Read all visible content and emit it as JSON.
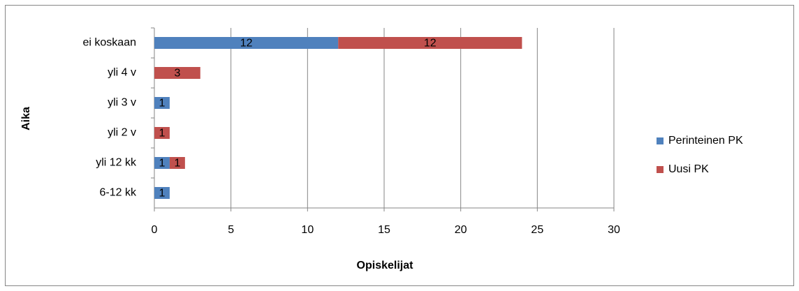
{
  "chart_data": {
    "type": "bar",
    "orientation": "horizontal",
    "stacked": true,
    "categories": [
      "ei koskaan",
      "yli 4 v",
      "yli 3 v",
      "yli 2 v",
      "yli 12 kk",
      "6-12 kk"
    ],
    "series": [
      {
        "name": "Perinteinen PK",
        "color": "#4f81bd",
        "values": [
          12,
          null,
          1,
          null,
          1,
          1
        ]
      },
      {
        "name": "Uusi PK",
        "color": "#c0504d",
        "values": [
          12,
          3,
          null,
          1,
          1,
          null
        ]
      }
    ],
    "xlabel": "Opiskelijat",
    "ylabel": "Aika",
    "xlim": [
      0,
      30
    ],
    "xticks": [
      0,
      5,
      10,
      15,
      20,
      25,
      30
    ],
    "grid": true,
    "legend": "right"
  }
}
